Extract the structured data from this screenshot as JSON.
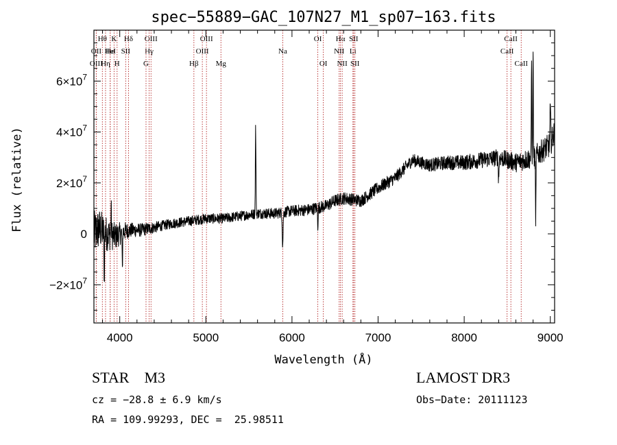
{
  "chart_data": {
    "type": "line",
    "title": "spec−55889−GAC_107N27_M1_sp07−163.fits",
    "xlabel": "Wavelength (Å)",
    "ylabel": "Flux (relative)",
    "xlim": [
      3700,
      9050
    ],
    "ylim": [
      -35000000,
      80000000
    ],
    "x_ticks": [
      4000,
      5000,
      6000,
      7000,
      8000,
      9000
    ],
    "x_tick_labels": [
      "4000",
      "5000",
      "6000",
      "7000",
      "8000",
      "9000"
    ],
    "y_ticks": [
      -20000000,
      0,
      20000000,
      40000000,
      60000000
    ],
    "y_tick_labels": [
      {
        "mant": "−2×10",
        "exp": "7"
      },
      {
        "mant": "0",
        "exp": ""
      },
      {
        "mant": "2×10",
        "exp": "7"
      },
      {
        "mant": "4×10",
        "exp": "7"
      },
      {
        "mant": "6×10",
        "exp": "7"
      }
    ],
    "line_color": "#b22222",
    "series_color": "#000000",
    "spectral_lines": [
      {
        "name": "Hθ",
        "wave": 3798,
        "row": 0
      },
      {
        "name": "OII",
        "wave": 3727,
        "row": 1
      },
      {
        "name": "OIII",
        "wave": 3727,
        "row": 2
      },
      {
        "name": "He",
        "wave": 3889,
        "row": 1
      },
      {
        "name": "Hη",
        "wave": 3835,
        "row": 2
      },
      {
        "name": "K",
        "wave": 3934,
        "row": 0
      },
      {
        "name": "HeI",
        "wave": 3889,
        "row": 1
      },
      {
        "name": "H",
        "wave": 3969,
        "row": 2
      },
      {
        "name": "Hδ",
        "wave": 4102,
        "row": 0
      },
      {
        "name": "SII",
        "wave": 4069,
        "row": 1
      },
      {
        "name": "OIII",
        "wave": 4363,
        "row": 0
      },
      {
        "name": "Hγ",
        "wave": 4341,
        "row": 1
      },
      {
        "name": "G",
        "wave": 4305,
        "row": 2
      },
      {
        "name": "OIII",
        "wave": 5007,
        "row": 0
      },
      {
        "name": "OIII",
        "wave": 4959,
        "row": 1
      },
      {
        "name": "Hβ",
        "wave": 4861,
        "row": 2
      },
      {
        "name": "Mg",
        "wave": 5175,
        "row": 2
      },
      {
        "name": "Na",
        "wave": 5893,
        "row": 1
      },
      {
        "name": "OI",
        "wave": 6300,
        "row": 0
      },
      {
        "name": "OI",
        "wave": 6364,
        "row": 2
      },
      {
        "name": "Hα",
        "wave": 6563,
        "row": 0
      },
      {
        "name": "SII",
        "wave": 6716,
        "row": 0
      },
      {
        "name": "NII",
        "wave": 6548,
        "row": 1
      },
      {
        "name": "Li",
        "wave": 6708,
        "row": 1
      },
      {
        "name": "NII",
        "wave": 6583,
        "row": 2
      },
      {
        "name": "SII",
        "wave": 6731,
        "row": 2
      },
      {
        "name": "CaII",
        "wave": 8542,
        "row": 0
      },
      {
        "name": "CaII",
        "wave": 8498,
        "row": 1
      },
      {
        "name": "CaII",
        "wave": 8662,
        "row": 2
      }
    ],
    "continuum": [
      [
        3700,
        0
      ],
      [
        3760,
        2000000
      ],
      [
        3850,
        0
      ],
      [
        3950,
        -1000000
      ],
      [
        4050,
        1000000
      ],
      [
        4150,
        1500000
      ],
      [
        4250,
        1500000
      ],
      [
        4400,
        2500000
      ],
      [
        4600,
        4000000
      ],
      [
        4800,
        5000000
      ],
      [
        5000,
        6000000
      ],
      [
        5200,
        6000000
      ],
      [
        5400,
        7000000
      ],
      [
        5600,
        8000000
      ],
      [
        5800,
        8000000
      ],
      [
        6000,
        9000000
      ],
      [
        6200,
        9500000
      ],
      [
        6400,
        11000000
      ],
      [
        6500,
        13000000
      ],
      [
        6600,
        14000000
      ],
      [
        6800,
        13000000
      ],
      [
        7000,
        18000000
      ],
      [
        7200,
        22000000
      ],
      [
        7400,
        29000000
      ],
      [
        7600,
        27000000
      ],
      [
        7800,
        28000000
      ],
      [
        8000,
        28000000
      ],
      [
        8200,
        29000000
      ],
      [
        8400,
        30000000
      ],
      [
        8600,
        28000000
      ],
      [
        8800,
        30000000
      ],
      [
        9000,
        35000000
      ],
      [
        9050,
        40000000
      ]
    ],
    "features": [
      {
        "wave": 5578,
        "amp": 34000000,
        "width": 5
      },
      {
        "wave": 5892,
        "amp": -13000000,
        "width": 7
      },
      {
        "wave": 6300,
        "amp": -7000000,
        "width": 5
      },
      {
        "wave": 8400,
        "amp": -8000000,
        "width": 6
      },
      {
        "wave": 8782,
        "amp": 40000000,
        "width": 4
      },
      {
        "wave": 8800,
        "amp": 45000000,
        "width": 4
      },
      {
        "wave": 8830,
        "amp": -30000000,
        "width": 4
      },
      {
        "wave": 9000,
        "amp": 14000000,
        "width": 6
      },
      {
        "wave": 3820,
        "amp": -20000000,
        "width": 4
      },
      {
        "wave": 3900,
        "amp": 12000000,
        "width": 4
      },
      {
        "wave": 4030,
        "amp": -15000000,
        "width": 4
      }
    ],
    "noise_amplitude": [
      [
        3700,
        9000000
      ],
      [
        4100,
        3000000
      ],
      [
        4500,
        2000000
      ],
      [
        5500,
        2000000
      ],
      [
        6500,
        2500000
      ],
      [
        7500,
        2500000
      ],
      [
        8500,
        3500000
      ],
      [
        9050,
        5000000
      ]
    ]
  },
  "info": {
    "class_line": "STAR    M3",
    "redshift_line": "cz = −28.8 ± 6.9 km/s",
    "coords_line": "RA = 109.99293, DEC =  25.98511",
    "survey": "LAMOST DR3",
    "obs_date": "Obs−Date: 20111123"
  }
}
